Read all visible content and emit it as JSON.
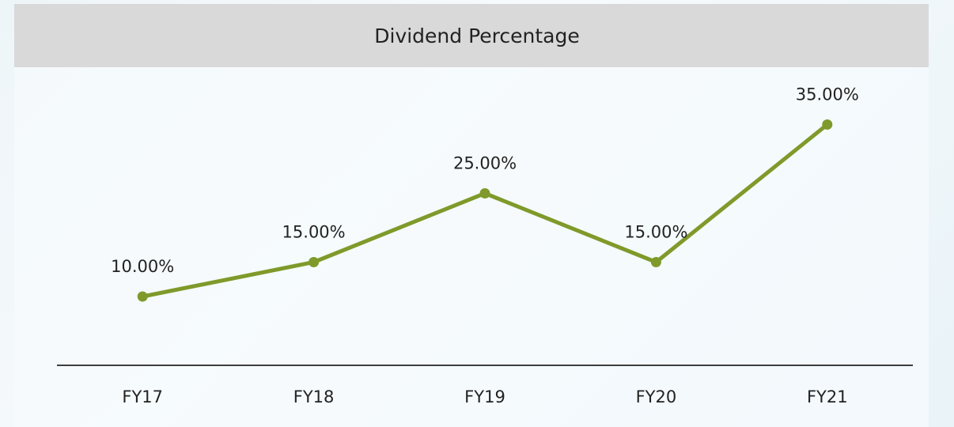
{
  "chart_data": {
    "type": "line",
    "title": "Dividend Percentage",
    "categories": [
      "FY17",
      "FY18",
      "FY19",
      "FY20",
      "FY21"
    ],
    "values": [
      10,
      15,
      25,
      15,
      35
    ],
    "value_labels": [
      "10.00%",
      "15.00%",
      "25.00%",
      "15.00%",
      "35.00%"
    ],
    "color": "#7f9a2a",
    "ylim": [
      0,
      40
    ]
  }
}
